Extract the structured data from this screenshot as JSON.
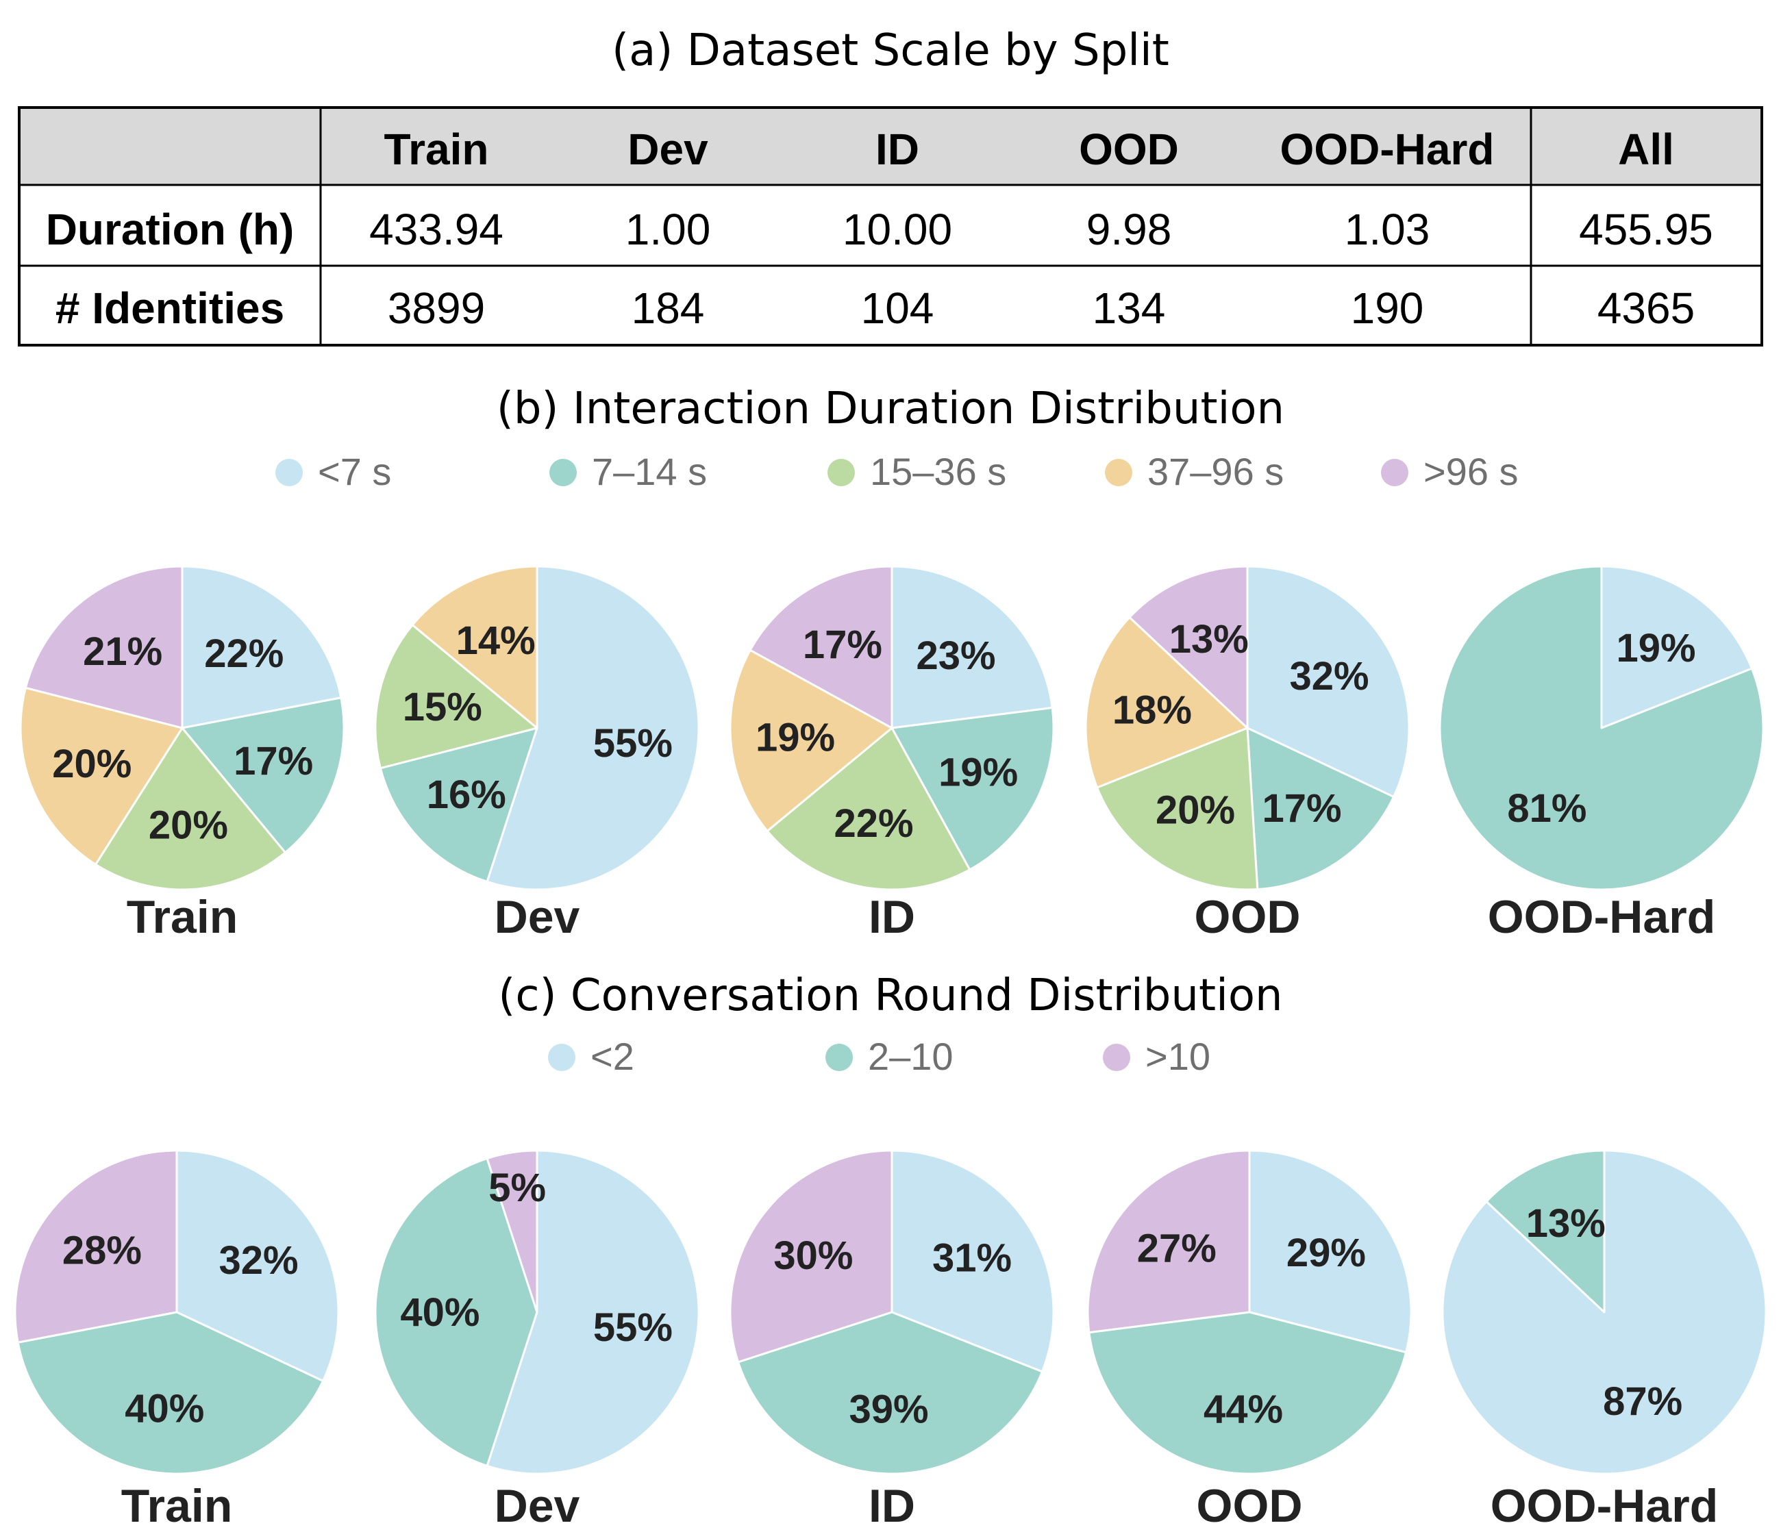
{
  "table": {
    "title": "(a) Dataset Scale by Split",
    "columns": [
      "",
      "Train",
      "Dev",
      "ID",
      "OOD",
      "OOD-Hard",
      "All"
    ],
    "rows": [
      {
        "label": "Duration (h)",
        "values": [
          "433.94",
          "1.00",
          "10.00",
          "9.98",
          "1.03",
          "455.95"
        ]
      },
      {
        "label": "# Identities",
        "values": [
          "3899",
          "184",
          "104",
          "134",
          "190",
          "4365"
        ]
      }
    ]
  },
  "chart_data": [
    {
      "type": "pie",
      "title": "(b) Interaction Duration Distribution",
      "legend_position": "top",
      "legend": [
        {
          "label": "<7 s",
          "color": "#c6e4f2"
        },
        {
          "label": "7–14 s",
          "color": "#9dd5cd"
        },
        {
          "label": "15–36 s",
          "color": "#bcdba3"
        },
        {
          "label": "37–96 s",
          "color": "#f2d39c"
        },
        {
          "label": ">96 s",
          "color": "#d7bde0"
        }
      ],
      "pies": [
        {
          "name": "Train",
          "values": [
            22,
            17,
            20,
            20,
            21
          ],
          "labels": [
            "22%",
            "17%",
            "20%",
            "20%",
            "21%"
          ]
        },
        {
          "name": "Dev",
          "values": [
            55,
            16,
            15,
            14,
            0
          ],
          "labels": [
            "55%",
            "16%",
            "15%",
            "14%",
            ""
          ]
        },
        {
          "name": "ID",
          "values": [
            23,
            19,
            22,
            19,
            17
          ],
          "labels": [
            "23%",
            "19%",
            "22%",
            "19%",
            "17%"
          ]
        },
        {
          "name": "OOD",
          "values": [
            32,
            17,
            20,
            18,
            13
          ],
          "labels": [
            "32%",
            "17%",
            "20%",
            "18%",
            "13%"
          ]
        },
        {
          "name": "OOD-Hard",
          "values": [
            19,
            81,
            0,
            0,
            0
          ],
          "labels": [
            "19%",
            "81%",
            "",
            "",
            ""
          ]
        }
      ]
    },
    {
      "type": "pie",
      "title": "(c) Conversation Round Distribution",
      "legend_position": "top",
      "legend": [
        {
          "label": "<2",
          "color": "#c6e4f2"
        },
        {
          "label": "2–10",
          "color": "#9dd5cd"
        },
        {
          "label": ">10",
          "color": "#d7bde0"
        }
      ],
      "pies": [
        {
          "name": "Train",
          "values": [
            32,
            40,
            28
          ],
          "labels": [
            "32%",
            "40%",
            "28%"
          ]
        },
        {
          "name": "Dev",
          "values": [
            55,
            40,
            5
          ],
          "labels": [
            "55%",
            "40%",
            "5%"
          ]
        },
        {
          "name": "ID",
          "values": [
            31,
            39,
            30
          ],
          "labels": [
            "31%",
            "39%",
            "30%"
          ]
        },
        {
          "name": "OOD",
          "values": [
            29,
            44,
            27
          ],
          "labels": [
            "29%",
            "44%",
            "27%"
          ]
        },
        {
          "name": "OOD-Hard",
          "values": [
            87,
            13,
            0
          ],
          "labels": [
            "87%",
            "13%",
            ""
          ]
        }
      ]
    }
  ]
}
